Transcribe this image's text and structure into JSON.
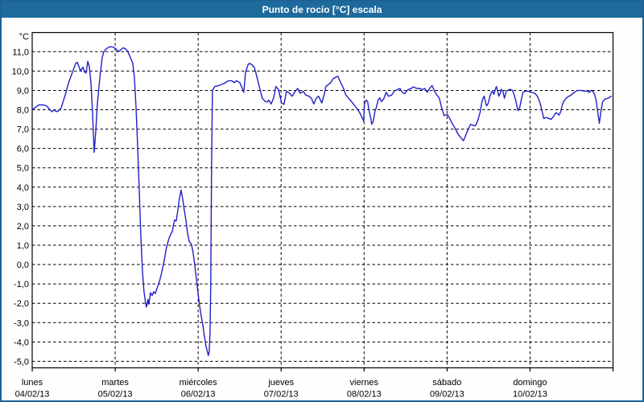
{
  "colors": {
    "titlebar_bg": "#1e6a9d",
    "window_border": "#1c6394",
    "title_text": "#ffffff",
    "plot_frame": "#000000",
    "grid": "#000000",
    "axis_text": "#000000",
    "series_line": "#2020c8",
    "plot_background": "#ffffff"
  },
  "chart_data": {
    "type": "line",
    "title": "Punto de rocío [°C] escala",
    "legend": "none",
    "grid": {
      "horizontal": "dashed",
      "vertical": "dashed at day boundaries"
    },
    "y_axis": {
      "unit_label": "°C",
      "min": -5.0,
      "max": 11.0,
      "tick_step": 1.0,
      "tick_labels": [
        "11,0",
        "10,0",
        "9,0",
        "8,0",
        "7,0",
        "6,0",
        "5,0",
        "4,0",
        "3,0",
        "2,0",
        "1,0",
        "0,0",
        "-1,0",
        "-2,0",
        "-3,0",
        "-4,0",
        "-5,0"
      ]
    },
    "x_axis": {
      "unit": "days since 04/02/13 00:00",
      "range_days": [
        0,
        7
      ],
      "ticks": [
        {
          "day": "lunes",
          "date": "04/02/13"
        },
        {
          "day": "martes",
          "date": "05/02/13"
        },
        {
          "day": "miércoles",
          "date": "06/02/13"
        },
        {
          "day": "jueves",
          "date": "07/02/13"
        },
        {
          "day": "viernes",
          "date": "08/02/13"
        },
        {
          "day": "sábado",
          "date": "09/02/13"
        },
        {
          "day": "domingo",
          "date": "10/02/13"
        }
      ]
    },
    "series": [
      {
        "name": "Punto de rocío [°C]",
        "color": "#2020c8",
        "points": [
          [
            0.0,
            8.0
          ],
          [
            0.048,
            8.15
          ],
          [
            0.078,
            8.25
          ],
          [
            0.136,
            8.25
          ],
          [
            0.175,
            8.2
          ],
          [
            0.213,
            8.0
          ],
          [
            0.242,
            7.9
          ],
          [
            0.262,
            8.0
          ],
          [
            0.291,
            7.9
          ],
          [
            0.32,
            7.95
          ],
          [
            0.349,
            8.1
          ],
          [
            0.378,
            8.5
          ],
          [
            0.407,
            8.9
          ],
          [
            0.436,
            9.35
          ],
          [
            0.465,
            9.7
          ],
          [
            0.494,
            10.05
          ],
          [
            0.524,
            10.4
          ],
          [
            0.543,
            10.45
          ],
          [
            0.562,
            10.25
          ],
          [
            0.582,
            10.0
          ],
          [
            0.611,
            10.2
          ],
          [
            0.63,
            9.95
          ],
          [
            0.65,
            9.9
          ],
          [
            0.669,
            10.5
          ],
          [
            0.688,
            10.25
          ],
          [
            0.708,
            9.4
          ],
          [
            0.727,
            7.9
          ],
          [
            0.747,
            5.8
          ],
          [
            0.766,
            6.9
          ],
          [
            0.785,
            8.3
          ],
          [
            0.805,
            9.2
          ],
          [
            0.824,
            10.0
          ],
          [
            0.844,
            10.7
          ],
          [
            0.863,
            11.0
          ],
          [
            0.892,
            11.15
          ],
          [
            0.931,
            11.25
          ],
          [
            0.97,
            11.25
          ],
          [
            1.008,
            11.15
          ],
          [
            1.038,
            11.0
          ],
          [
            1.067,
            11.1
          ],
          [
            1.096,
            11.2
          ],
          [
            1.125,
            11.15
          ],
          [
            1.154,
            11.0
          ],
          [
            1.183,
            10.7
          ],
          [
            1.212,
            10.4
          ],
          [
            1.231,
            9.7
          ],
          [
            1.251,
            8.2
          ],
          [
            1.27,
            6.2
          ],
          [
            1.29,
            3.8
          ],
          [
            1.309,
            1.5
          ],
          [
            1.328,
            -0.3
          ],
          [
            1.348,
            -1.4
          ],
          [
            1.367,
            -2.0
          ],
          [
            1.377,
            -2.2
          ],
          [
            1.396,
            -1.8
          ],
          [
            1.406,
            -2.05
          ],
          [
            1.425,
            -1.45
          ],
          [
            1.445,
            -1.6
          ],
          [
            1.464,
            -1.4
          ],
          [
            1.483,
            -1.5
          ],
          [
            1.503,
            -1.25
          ],
          [
            1.532,
            -0.9
          ],
          [
            1.561,
            -0.4
          ],
          [
            1.59,
            0.2
          ],
          [
            1.619,
            0.9
          ],
          [
            1.648,
            1.35
          ],
          [
            1.668,
            1.55
          ],
          [
            1.687,
            1.7
          ],
          [
            1.706,
            2.1
          ],
          [
            1.716,
            2.3
          ],
          [
            1.736,
            2.25
          ],
          [
            1.755,
            2.8
          ],
          [
            1.774,
            3.4
          ],
          [
            1.794,
            3.85
          ],
          [
            1.813,
            3.4
          ],
          [
            1.832,
            2.85
          ],
          [
            1.852,
            2.3
          ],
          [
            1.871,
            1.7
          ],
          [
            1.891,
            1.2
          ],
          [
            1.92,
            1.05
          ],
          [
            1.939,
            0.6
          ],
          [
            1.959,
            0.0
          ],
          [
            1.978,
            -0.7
          ],
          [
            1.997,
            -1.4
          ],
          [
            2.017,
            -2.1
          ],
          [
            2.036,
            -2.65
          ],
          [
            2.056,
            -3.1
          ],
          [
            2.075,
            -3.7
          ],
          [
            2.094,
            -4.2
          ],
          [
            2.114,
            -4.55
          ],
          [
            2.123,
            -4.7
          ],
          [
            2.133,
            -4.5
          ],
          [
            2.143,
            -3.5
          ],
          [
            2.152,
            -1.0
          ],
          [
            2.162,
            5.0
          ],
          [
            2.172,
            9.0
          ],
          [
            2.201,
            9.2
          ],
          [
            2.25,
            9.25
          ],
          [
            2.308,
            9.35
          ],
          [
            2.366,
            9.5
          ],
          [
            2.404,
            9.5
          ],
          [
            2.434,
            9.4
          ],
          [
            2.463,
            9.5
          ],
          [
            2.502,
            9.4
          ],
          [
            2.531,
            9.1
          ],
          [
            2.55,
            8.9
          ],
          [
            2.57,
            9.9
          ],
          [
            2.599,
            10.3
          ],
          [
            2.618,
            10.4
          ],
          [
            2.647,
            10.33
          ],
          [
            2.676,
            10.2
          ],
          [
            2.696,
            9.9
          ],
          [
            2.725,
            9.4
          ],
          [
            2.754,
            8.9
          ],
          [
            2.773,
            8.6
          ],
          [
            2.802,
            8.45
          ],
          [
            2.831,
            8.4
          ],
          [
            2.851,
            8.5
          ],
          [
            2.88,
            8.3
          ],
          [
            2.909,
            8.6
          ],
          [
            2.938,
            9.2
          ],
          [
            2.967,
            9.05
          ],
          [
            3.006,
            8.35
          ],
          [
            3.035,
            8.28
          ],
          [
            3.064,
            8.95
          ],
          [
            3.103,
            8.85
          ],
          [
            3.132,
            8.7
          ],
          [
            3.171,
            8.95
          ],
          [
            3.2,
            9.1
          ],
          [
            3.229,
            8.85
          ],
          [
            3.268,
            8.95
          ],
          [
            3.297,
            8.76
          ],
          [
            3.335,
            8.7
          ],
          [
            3.365,
            8.6
          ],
          [
            3.394,
            8.3
          ],
          [
            3.423,
            8.6
          ],
          [
            3.452,
            8.7
          ],
          [
            3.49,
            8.35
          ],
          [
            3.52,
            8.8
          ],
          [
            3.539,
            9.2
          ],
          [
            3.568,
            9.3
          ],
          [
            3.597,
            9.4
          ],
          [
            3.626,
            9.6
          ],
          [
            3.665,
            9.7
          ],
          [
            3.684,
            9.73
          ],
          [
            3.713,
            9.45
          ],
          [
            3.752,
            9.1
          ],
          [
            3.781,
            8.76
          ],
          [
            3.82,
            8.56
          ],
          [
            3.849,
            8.42
          ],
          [
            3.888,
            8.2
          ],
          [
            3.917,
            8.05
          ],
          [
            3.946,
            7.86
          ],
          [
            3.975,
            7.6
          ],
          [
            3.995,
            7.4
          ],
          [
            4.004,
            8.3
          ],
          [
            4.024,
            8.5
          ],
          [
            4.043,
            8.42
          ],
          [
            4.062,
            7.9
          ],
          [
            4.082,
            7.55
          ],
          [
            4.091,
            7.25
          ],
          [
            4.111,
            7.4
          ],
          [
            4.13,
            7.9
          ],
          [
            4.15,
            8.15
          ],
          [
            4.169,
            8.5
          ],
          [
            4.188,
            8.62
          ],
          [
            4.208,
            8.42
          ],
          [
            4.237,
            8.56
          ],
          [
            4.266,
            8.9
          ],
          [
            4.295,
            8.7
          ],
          [
            4.334,
            8.76
          ],
          [
            4.363,
            8.97
          ],
          [
            4.402,
            9.04
          ],
          [
            4.431,
            9.1
          ],
          [
            4.46,
            8.9
          ],
          [
            4.489,
            8.83
          ],
          [
            4.528,
            9.04
          ],
          [
            4.567,
            9.1
          ],
          [
            4.596,
            9.18
          ],
          [
            4.634,
            9.1
          ],
          [
            4.673,
            9.1
          ],
          [
            4.702,
            9.04
          ],
          [
            4.731,
            9.1
          ],
          [
            4.761,
            8.9
          ],
          [
            4.79,
            9.1
          ],
          [
            4.819,
            9.25
          ],
          [
            4.848,
            8.97
          ],
          [
            4.877,
            8.76
          ],
          [
            4.906,
            8.6
          ],
          [
            4.935,
            8.1
          ],
          [
            4.964,
            7.7
          ],
          [
            5.003,
            7.75
          ],
          [
            5.032,
            7.55
          ],
          [
            5.061,
            7.3
          ],
          [
            5.09,
            7.1
          ],
          [
            5.119,
            6.85
          ],
          [
            5.148,
            6.65
          ],
          [
            5.177,
            6.5
          ],
          [
            5.197,
            6.4
          ],
          [
            5.226,
            6.7
          ],
          [
            5.255,
            7.0
          ],
          [
            5.284,
            7.25
          ],
          [
            5.313,
            7.2
          ],
          [
            5.333,
            7.16
          ],
          [
            5.352,
            7.25
          ],
          [
            5.371,
            7.45
          ],
          [
            5.4,
            7.9
          ],
          [
            5.42,
            8.4
          ],
          [
            5.439,
            8.65
          ],
          [
            5.449,
            8.7
          ],
          [
            5.468,
            8.3
          ],
          [
            5.478,
            8.2
          ],
          [
            5.497,
            8.35
          ],
          [
            5.517,
            8.7
          ],
          [
            5.536,
            8.9
          ],
          [
            5.546,
            8.97
          ],
          [
            5.565,
            8.8
          ],
          [
            5.585,
            9.1
          ],
          [
            5.594,
            9.2
          ],
          [
            5.614,
            8.9
          ],
          [
            5.623,
            8.7
          ],
          [
            5.643,
            8.85
          ],
          [
            5.652,
            9.05
          ],
          [
            5.672,
            8.97
          ],
          [
            5.691,
            8.6
          ],
          [
            5.71,
            8.9
          ],
          [
            5.73,
            9.0
          ],
          [
            5.759,
            9.05
          ],
          [
            5.788,
            9.0
          ],
          [
            5.807,
            8.8
          ],
          [
            5.827,
            8.5
          ],
          [
            5.846,
            8.1
          ],
          [
            5.856,
            7.95
          ],
          [
            5.875,
            8.1
          ],
          [
            5.894,
            8.5
          ],
          [
            5.914,
            8.9
          ],
          [
            5.943,
            8.97
          ],
          [
            5.982,
            8.95
          ],
          [
            6.021,
            8.9
          ],
          [
            6.059,
            8.85
          ],
          [
            6.088,
            8.7
          ],
          [
            6.108,
            8.5
          ],
          [
            6.127,
            8.25
          ],
          [
            6.146,
            7.9
          ],
          [
            6.166,
            7.55
          ],
          [
            6.195,
            7.6
          ],
          [
            6.224,
            7.55
          ],
          [
            6.253,
            7.5
          ],
          [
            6.282,
            7.65
          ],
          [
            6.311,
            7.85
          ],
          [
            6.331,
            7.8
          ],
          [
            6.35,
            7.72
          ],
          [
            6.369,
            7.9
          ],
          [
            6.389,
            8.25
          ],
          [
            6.408,
            8.45
          ],
          [
            6.437,
            8.6
          ],
          [
            6.466,
            8.7
          ],
          [
            6.495,
            8.76
          ],
          [
            6.534,
            8.9
          ],
          [
            6.573,
            9.0
          ],
          [
            6.612,
            9.0
          ],
          [
            6.651,
            8.97
          ],
          [
            6.69,
            8.95
          ],
          [
            6.719,
            8.9
          ],
          [
            6.738,
            9.0
          ],
          [
            6.758,
            8.95
          ],
          [
            6.777,
            8.8
          ],
          [
            6.796,
            8.5
          ],
          [
            6.816,
            7.9
          ],
          [
            6.835,
            7.3
          ],
          [
            6.854,
            7.9
          ],
          [
            6.874,
            8.4
          ],
          [
            6.903,
            8.55
          ],
          [
            6.941,
            8.6
          ],
          [
            6.98,
            8.7
          ]
        ]
      }
    ]
  }
}
